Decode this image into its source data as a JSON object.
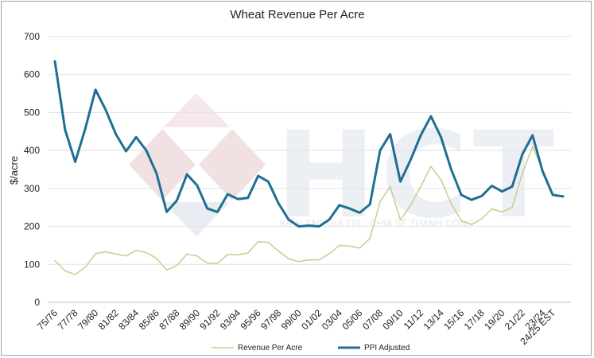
{
  "chart_data": {
    "type": "line",
    "title": "Wheat Revenue Per Acre",
    "ylabel": "$/acre",
    "xlabel": "",
    "ylim": [
      0,
      700
    ],
    "yticks": [
      0,
      100,
      200,
      300,
      400,
      500,
      600,
      700
    ],
    "grid": "horizontal",
    "legend_position": "bottom",
    "x": [
      "75/76",
      "76/77",
      "77/78",
      "78/79",
      "79/80",
      "80/81",
      "81/82",
      "82/83",
      "83/84",
      "84/85",
      "85/86",
      "86/87",
      "87/88",
      "88/89",
      "89/90",
      "90/91",
      "91/92",
      "92/93",
      "93/94",
      "94/95",
      "95/96",
      "96/97",
      "97/98",
      "98/99",
      "99/00",
      "00/01",
      "01/02",
      "02/03",
      "03/04",
      "04/05",
      "05/06",
      "06/07",
      "07/08",
      "08/09",
      "09/10",
      "10/11",
      "11/12",
      "12/13",
      "13/14",
      "14/15",
      "15/16",
      "16/17",
      "17/18",
      "18/19",
      "19/20",
      "20/21",
      "21/22",
      "22/23",
      "23/24",
      "24/25 EST",
      "25/26"
    ],
    "x_tick_labels": [
      "75/76",
      "77/78",
      "79/80",
      "81/82",
      "83/84",
      "85/86",
      "87/88",
      "89/90",
      "91/92",
      "93/94",
      "95/96",
      "97/98",
      "99/00",
      "01/02",
      "03/04",
      "05/06",
      "07/08",
      "09/10",
      "11/12",
      "13/14",
      "15/16",
      "17/18",
      "19/20",
      "21/22",
      "23/24",
      "24/25 EST"
    ],
    "series": [
      {
        "name": "Revenue Per Acre",
        "color": "#c3cf8e",
        "values": [
          110,
          83,
          73,
          93,
          128,
          133,
          127,
          122,
          137,
          131,
          116,
          85,
          97,
          127,
          122,
          103,
          103,
          126,
          125,
          130,
          160,
          158,
          135,
          115,
          107,
          112,
          112,
          128,
          150,
          148,
          143,
          168,
          265,
          305,
          217,
          255,
          305,
          358,
          323,
          260,
          215,
          205,
          220,
          246,
          238,
          250,
          340,
          410,
          350,
          283,
          null
        ]
      },
      {
        "name": "PPI Adjusted",
        "color": "#1f6f93",
        "values": [
          635,
          455,
          370,
          458,
          560,
          507,
          443,
          398,
          435,
          400,
          340,
          238,
          268,
          337,
          308,
          247,
          238,
          285,
          272,
          275,
          333,
          318,
          261,
          218,
          200,
          202,
          200,
          218,
          256,
          247,
          236,
          258,
          400,
          443,
          318,
          375,
          440,
          490,
          435,
          350,
          283,
          270,
          280,
          307,
          292,
          305,
          390,
          440,
          345,
          283,
          279
        ]
      }
    ]
  },
  "watermark": {
    "letters": "HCT",
    "caption": "KIẾN TẠO GIÁ TRỊ - CHIA SẺ THÀNH CÔNG"
  }
}
